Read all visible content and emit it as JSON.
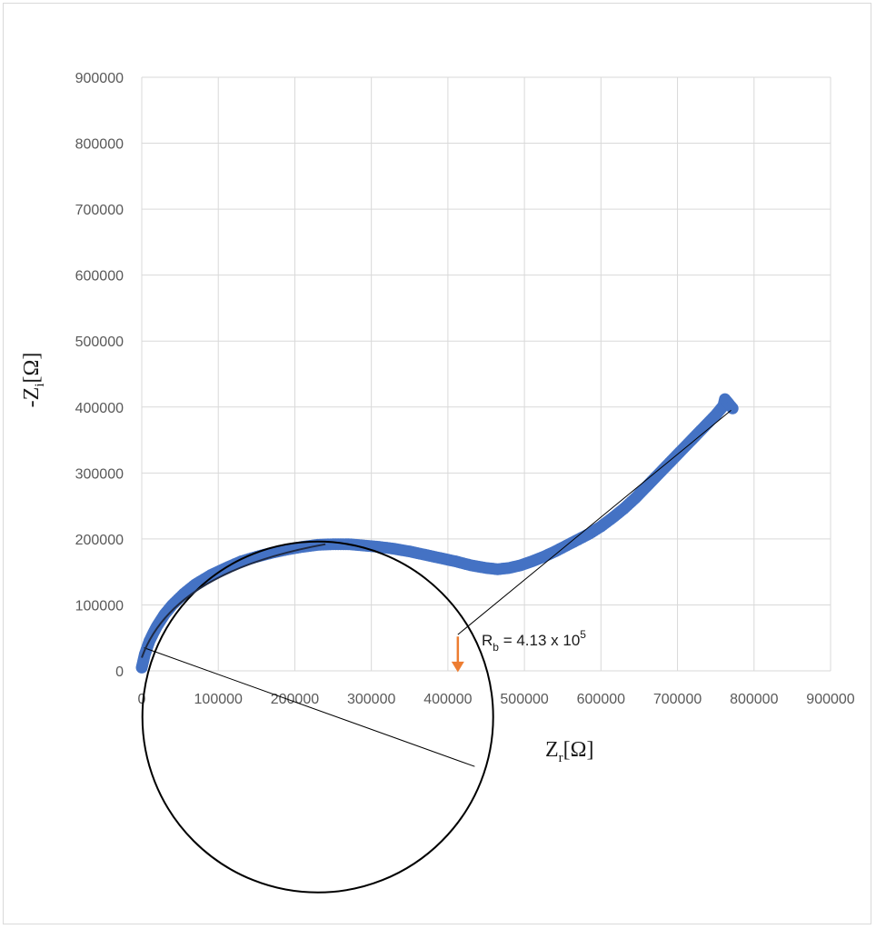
{
  "chart_data": {
    "type": "scatter",
    "xlabel": {
      "main": "Z",
      "sub": "r",
      "unit": "[Ω]"
    },
    "ylabel": {
      "prefix": "-",
      "main": "Z",
      "sub": "i",
      "unit": "[Ω]"
    },
    "xlim": [
      0,
      900000
    ],
    "ylim": [
      0,
      900000
    ],
    "x_ticks": [
      "0",
      "100000",
      "200000",
      "300000",
      "400000",
      "500000",
      "600000",
      "700000",
      "800000",
      "900000"
    ],
    "y_ticks": [
      "0",
      "100000",
      "200000",
      "300000",
      "400000",
      "500000",
      "600000",
      "700000",
      "800000",
      "900000"
    ],
    "grid": true,
    "series_color": "#4472c4",
    "points": [
      [
        0,
        5000
      ],
      [
        2000,
        15000
      ],
      [
        4000,
        25000
      ],
      [
        7000,
        35000
      ],
      [
        10000,
        45000
      ],
      [
        15000,
        57000
      ],
      [
        20000,
        68000
      ],
      [
        30000,
        86000
      ],
      [
        40000,
        100000
      ],
      [
        55000,
        117000
      ],
      [
        70000,
        131000
      ],
      [
        90000,
        145000
      ],
      [
        110000,
        156000
      ],
      [
        130000,
        166000
      ],
      [
        150000,
        173000
      ],
      [
        170000,
        179000
      ],
      [
        190000,
        184000
      ],
      [
        210000,
        188000
      ],
      [
        230000,
        191000
      ],
      [
        250000,
        192000
      ],
      [
        270000,
        192000
      ],
      [
        290000,
        190000
      ],
      [
        310000,
        188000
      ],
      [
        330000,
        185000
      ],
      [
        350000,
        181000
      ],
      [
        370000,
        176000
      ],
      [
        390000,
        171000
      ],
      [
        410000,
        166000
      ],
      [
        430000,
        160000
      ],
      [
        450000,
        156000
      ],
      [
        465000,
        154000
      ],
      [
        480000,
        156000
      ],
      [
        495000,
        160000
      ],
      [
        510000,
        166000
      ],
      [
        525000,
        173000
      ],
      [
        540000,
        181000
      ],
      [
        555000,
        190000
      ],
      [
        570000,
        199000
      ],
      [
        585000,
        208000
      ],
      [
        600000,
        219000
      ],
      [
        615000,
        232000
      ],
      [
        630000,
        246000
      ],
      [
        645000,
        262000
      ],
      [
        660000,
        280000
      ],
      [
        675000,
        298000
      ],
      [
        690000,
        316000
      ],
      [
        705000,
        334000
      ],
      [
        720000,
        352000
      ],
      [
        735000,
        370000
      ],
      [
        750000,
        388000
      ],
      [
        760000,
        402000
      ],
      [
        762000,
        412000
      ],
      [
        772000,
        398000
      ]
    ],
    "annotation": {
      "prefix": "R",
      "sub": "b",
      "text": " = 4.13 x 10",
      "sup": "5",
      "arrow_color": "#ed7d31",
      "x_value": 413000
    }
  }
}
